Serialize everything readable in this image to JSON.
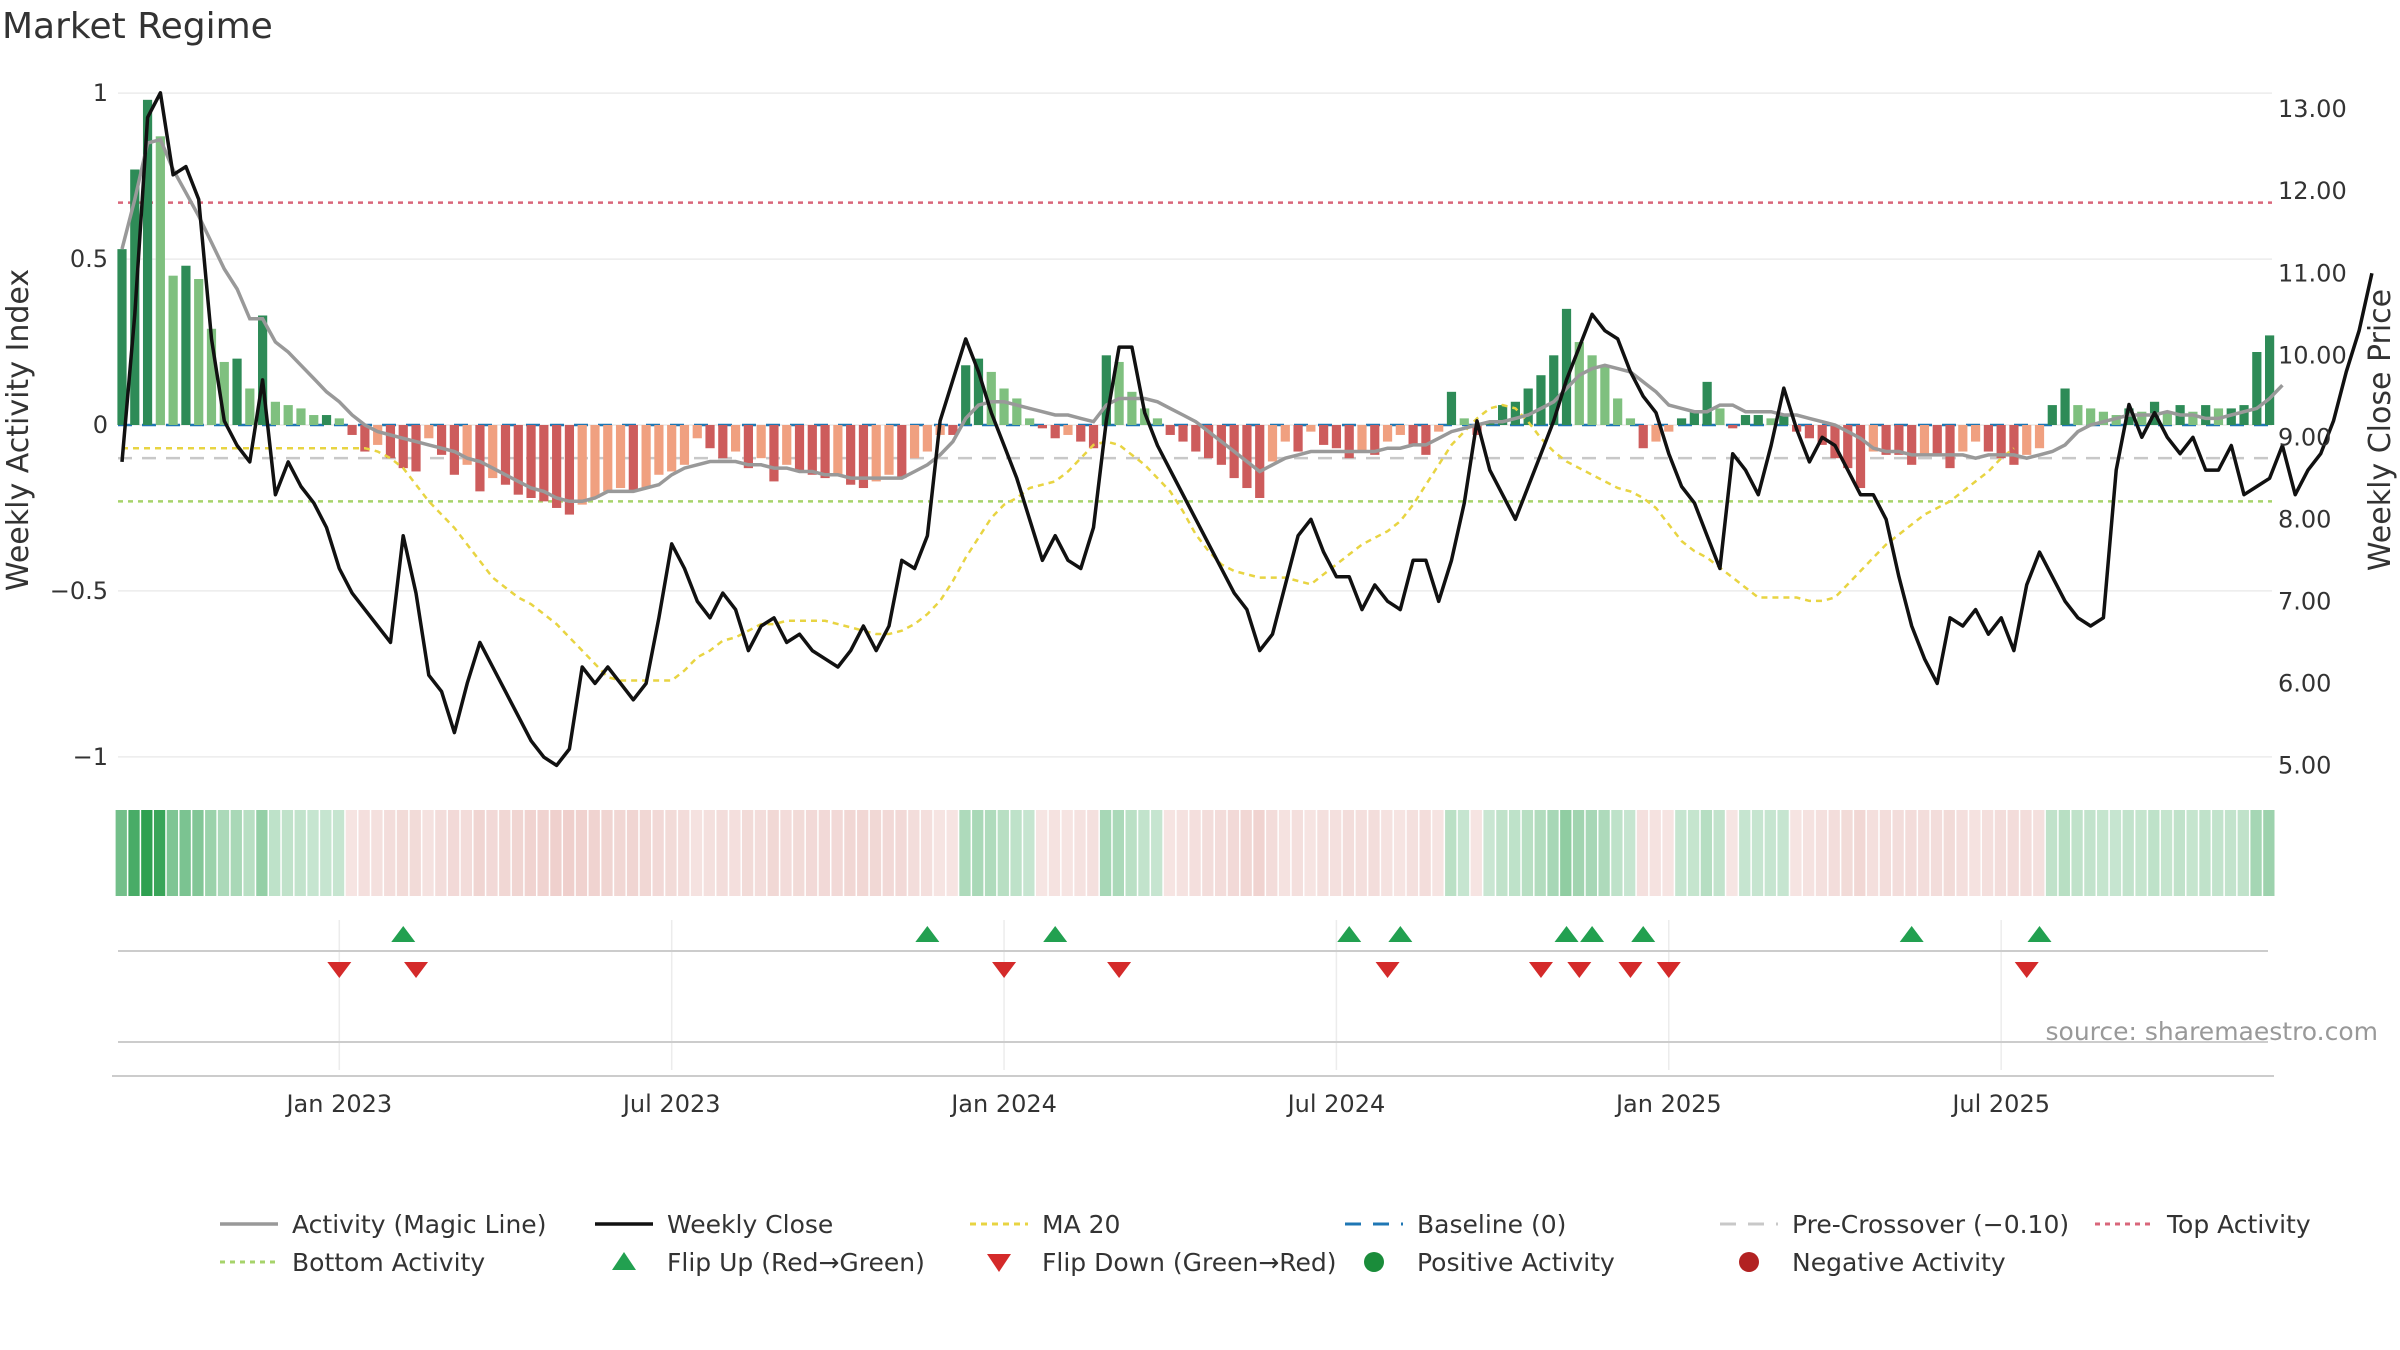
{
  "chart_data": {
    "type": "bar",
    "title": "Market Regime",
    "ylabel_left": "Weekly Activity Index",
    "ylabel_right": "Weekly Close Price",
    "source": "source: sharemaestro.com",
    "ylim_left": [
      -1.1,
      1.1
    ],
    "ylim_right": [
      4.7,
      13.6
    ],
    "yticks_left": [
      {
        "value": 1,
        "label": "1"
      },
      {
        "value": 0.5,
        "label": "0.5"
      },
      {
        "value": 0,
        "label": "0"
      },
      {
        "value": -0.5,
        "label": "−0.5"
      },
      {
        "value": -1,
        "label": "−1"
      }
    ],
    "yticks_right": [
      "13.00",
      "12.00",
      "11.00",
      "10.00",
      "9.00",
      "8.00",
      "7.00",
      "6.00",
      "5.00"
    ],
    "x_ticks": [
      {
        "week": 17,
        "label": "Jan 2023"
      },
      {
        "week": 43,
        "label": "Jul 2023"
      },
      {
        "week": 69,
        "label": "Jan 2024"
      },
      {
        "week": 95,
        "label": "Jul 2024"
      },
      {
        "week": 121,
        "label": "Jan 2025"
      },
      {
        "week": 147,
        "label": "Jul 2025"
      }
    ],
    "reference_lines": {
      "top_activity": 0.67,
      "bottom_activity": -0.23,
      "pre_crossover": -0.1,
      "baseline": 0
    },
    "activity": [
      0.53,
      0.77,
      0.98,
      0.87,
      0.45,
      0.48,
      0.44,
      0.29,
      0.19,
      0.2,
      0.11,
      0.33,
      0.07,
      0.06,
      0.05,
      0.03,
      0.03,
      0.02,
      -0.03,
      -0.08,
      -0.06,
      -0.1,
      -0.13,
      -0.14,
      -0.04,
      -0.09,
      -0.15,
      -0.12,
      -0.2,
      -0.16,
      -0.18,
      -0.21,
      -0.22,
      -0.23,
      -0.25,
      -0.27,
      -0.24,
      -0.22,
      -0.2,
      -0.19,
      -0.2,
      -0.19,
      -0.15,
      -0.14,
      -0.12,
      -0.04,
      -0.07,
      -0.1,
      -0.08,
      -0.13,
      -0.1,
      -0.17,
      -0.12,
      -0.14,
      -0.15,
      -0.16,
      -0.15,
      -0.18,
      -0.19,
      -0.17,
      -0.15,
      -0.16,
      -0.1,
      -0.08,
      -0.03,
      -0.03,
      0.18,
      0.2,
      0.16,
      0.11,
      0.08,
      0.02,
      -0.01,
      -0.04,
      -0.03,
      -0.05,
      -0.07,
      0.21,
      0.19,
      0.1,
      0.05,
      0.02,
      -0.03,
      -0.05,
      -0.08,
      -0.1,
      -0.12,
      -0.16,
      -0.19,
      -0.22,
      -0.11,
      -0.05,
      -0.08,
      -0.02,
      -0.06,
      -0.07,
      -0.1,
      -0.08,
      -0.09,
      -0.05,
      -0.03,
      -0.06,
      -0.09,
      -0.02,
      0.1,
      0.02,
      -0.03,
      0.01,
      0.06,
      0.07,
      0.11,
      0.15,
      0.21,
      0.35,
      0.25,
      0.21,
      0.18,
      0.08,
      0.02,
      -0.07,
      -0.05,
      -0.02,
      0.02,
      0.04,
      0.13,
      0.05,
      -0.01,
      0.03,
      0.03,
      0.02,
      0.03,
      -0.02,
      -0.04,
      -0.06,
      -0.1,
      -0.13,
      -0.19,
      -0.08,
      -0.09,
      -0.09,
      -0.12,
      -0.09,
      -0.09,
      -0.13,
      -0.08,
      -0.05,
      -0.08,
      -0.1,
      -0.12,
      -0.09,
      -0.07,
      0.06,
      0.11,
      0.06,
      0.05,
      0.04,
      0.03,
      0.05,
      0.04,
      0.07,
      0.04,
      0.06,
      0.04,
      0.06,
      0.05,
      0.05,
      0.06,
      0.22,
      0.27
    ],
    "magic_line": [
      0.53,
      0.68,
      0.85,
      0.86,
      0.77,
      0.7,
      0.63,
      0.55,
      0.47,
      0.41,
      0.32,
      0.32,
      0.25,
      0.22,
      0.18,
      0.14,
      0.1,
      0.07,
      0.03,
      0,
      -0.02,
      -0.03,
      -0.04,
      -0.05,
      -0.06,
      -0.07,
      -0.08,
      -0.1,
      -0.11,
      -0.13,
      -0.15,
      -0.17,
      -0.19,
      -0.2,
      -0.22,
      -0.23,
      -0.23,
      -0.22,
      -0.2,
      -0.2,
      -0.2,
      -0.19,
      -0.18,
      -0.15,
      -0.13,
      -0.12,
      -0.11,
      -0.11,
      -0.11,
      -0.12,
      -0.12,
      -0.13,
      -0.13,
      -0.14,
      -0.14,
      -0.15,
      -0.15,
      -0.16,
      -0.16,
      -0.16,
      -0.16,
      -0.16,
      -0.14,
      -0.12,
      -0.09,
      -0.05,
      0.02,
      0.06,
      0.07,
      0.07,
      0.06,
      0.05,
      0.04,
      0.03,
      0.03,
      0.02,
      0.01,
      0.06,
      0.08,
      0.08,
      0.08,
      0.07,
      0.05,
      0.03,
      0.01,
      -0.02,
      -0.05,
      -0.08,
      -0.11,
      -0.14,
      -0.12,
      -0.1,
      -0.09,
      -0.08,
      -0.08,
      -0.08,
      -0.08,
      -0.08,
      -0.08,
      -0.07,
      -0.07,
      -0.06,
      -0.06,
      -0.04,
      -0.02,
      -0.01,
      0,
      0.01,
      0.01,
      0.02,
      0.03,
      0.05,
      0.07,
      0.11,
      0.15,
      0.17,
      0.18,
      0.17,
      0.16,
      0.13,
      0.1,
      0.06,
      0.05,
      0.04,
      0.04,
      0.06,
      0.06,
      0.04,
      0.04,
      0.04,
      0.03,
      0.03,
      0.02,
      0.01,
      0,
      -0.02,
      -0.04,
      -0.07,
      -0.08,
      -0.08,
      -0.09,
      -0.09,
      -0.09,
      -0.09,
      -0.09,
      -0.1,
      -0.09,
      -0.09,
      -0.09,
      -0.1,
      -0.09,
      -0.08,
      -0.06,
      -0.02,
      0,
      0.01,
      0.02,
      0.03,
      0.03,
      0.03,
      0.04,
      0.03,
      0.03,
      0.02,
      0.02,
      0.03,
      0.04,
      0.05,
      0.08,
      0.12
    ],
    "ma20": [
      -0.07,
      -0.07,
      -0.07,
      -0.07,
      -0.07,
      -0.07,
      -0.07,
      -0.07,
      -0.07,
      -0.07,
      -0.07,
      -0.07,
      -0.07,
      -0.07,
      -0.07,
      -0.07,
      -0.07,
      -0.07,
      -0.07,
      -0.07,
      -0.08,
      -0.1,
      -0.13,
      -0.18,
      -0.23,
      -0.27,
      -0.31,
      -0.36,
      -0.41,
      -0.46,
      -0.49,
      -0.52,
      -0.54,
      -0.57,
      -0.6,
      -0.64,
      -0.68,
      -0.72,
      -0.76,
      -0.77,
      -0.77,
      -0.77,
      -0.77,
      -0.77,
      -0.74,
      -0.7,
      -0.68,
      -0.65,
      -0.64,
      -0.62,
      -0.6,
      -0.6,
      -0.59,
      -0.59,
      -0.59,
      -0.59,
      -0.6,
      -0.61,
      -0.62,
      -0.63,
      -0.63,
      -0.62,
      -0.6,
      -0.57,
      -0.53,
      -0.47,
      -0.4,
      -0.34,
      -0.28,
      -0.24,
      -0.22,
      -0.19,
      -0.18,
      -0.17,
      -0.14,
      -0.1,
      -0.06,
      -0.05,
      -0.06,
      -0.09,
      -0.12,
      -0.16,
      -0.2,
      -0.26,
      -0.33,
      -0.38,
      -0.42,
      -0.44,
      -0.45,
      -0.46,
      -0.46,
      -0.46,
      -0.47,
      -0.48,
      -0.45,
      -0.42,
      -0.39,
      -0.36,
      -0.34,
      -0.32,
      -0.29,
      -0.24,
      -0.18,
      -0.12,
      -0.06,
      -0.02,
      0.02,
      0.05,
      0.06,
      0.05,
      0.01,
      -0.04,
      -0.08,
      -0.11,
      -0.13,
      -0.15,
      -0.17,
      -0.19,
      -0.2,
      -0.22,
      -0.25,
      -0.3,
      -0.35,
      -0.38,
      -0.4,
      -0.43,
      -0.46,
      -0.49,
      -0.52,
      -0.52,
      -0.52,
      -0.52,
      -0.53,
      -0.53,
      -0.52,
      -0.48,
      -0.44,
      -0.4,
      -0.36,
      -0.33,
      -0.3,
      -0.27,
      -0.25,
      -0.23,
      -0.2,
      -0.17,
      -0.14,
      -0.1,
      -0.07
    ],
    "price": [
      8.7,
      10.5,
      12.9,
      13.2,
      12.2,
      12.3,
      11.9,
      10.2,
      9.2,
      8.9,
      8.7,
      9.7,
      8.3,
      8.7,
      8.4,
      8.2,
      7.9,
      7.4,
      7.1,
      6.9,
      6.7,
      6.5,
      7.8,
      7.1,
      6.1,
      5.9,
      5.4,
      6.0,
      6.5,
      6.2,
      5.9,
      5.6,
      5.3,
      5.1,
      5.0,
      5.2,
      6.2,
      6.0,
      6.2,
      6.0,
      5.8,
      6.0,
      6.8,
      7.7,
      7.4,
      7.0,
      6.8,
      7.1,
      6.9,
      6.4,
      6.7,
      6.8,
      6.5,
      6.6,
      6.4,
      6.3,
      6.2,
      6.4,
      6.7,
      6.4,
      6.7,
      7.5,
      7.4,
      7.8,
      9.2,
      9.7,
      10.2,
      9.8,
      9.3,
      8.9,
      8.5,
      8.0,
      7.5,
      7.8,
      7.5,
      7.4,
      7.9,
      9.2,
      10.1,
      10.1,
      9.3,
      8.9,
      8.6,
      8.3,
      8.0,
      7.7,
      7.4,
      7.1,
      6.9,
      6.4,
      6.6,
      7.2,
      7.8,
      8.0,
      7.6,
      7.3,
      7.3,
      6.9,
      7.2,
      7.0,
      6.9,
      7.5,
      7.5,
      7.0,
      7.5,
      8.2,
      9.2,
      8.6,
      8.3,
      8.0,
      8.4,
      8.8,
      9.2,
      9.7,
      10.1,
      10.5,
      10.3,
      10.2,
      9.8,
      9.5,
      9.3,
      8.8,
      8.4,
      8.2,
      7.8,
      7.4,
      8.8,
      8.6,
      8.3,
      8.9,
      9.6,
      9.1,
      8.7,
      9.0,
      8.9,
      8.6,
      8.3,
      8.3,
      8.0,
      7.3,
      6.7,
      6.3,
      6.0,
      6.8,
      6.7,
      6.9,
      6.6,
      6.8,
      6.4,
      7.2,
      7.6,
      7.3,
      7.0,
      6.8,
      6.7,
      6.8,
      8.6,
      9.4,
      9.0,
      9.3,
      9.0,
      8.8,
      9.0,
      8.6,
      8.6,
      8.9,
      8.3,
      8.4,
      8.5,
      8.9,
      8.3,
      8.6,
      8.8,
      9.2,
      9.8,
      10.3,
      11.0
    ],
    "flip_up_weeks": [
      22,
      63,
      73,
      96,
      100,
      113,
      115,
      119,
      140,
      150
    ],
    "flip_down_weeks": [
      17,
      23,
      69,
      78,
      99,
      111,
      114,
      118,
      121,
      149
    ],
    "strip_label": "",
    "legend": [
      {
        "key": "magic",
        "label": "Activity (Magic Line)"
      },
      {
        "key": "close",
        "label": "Weekly Close"
      },
      {
        "key": "ma20",
        "label": "MA 20"
      },
      {
        "key": "baseline",
        "label": "Baseline (0)"
      },
      {
        "key": "precross",
        "label": "Pre-Crossover (−0.10)"
      },
      {
        "key": "top",
        "label": "Top Activity"
      },
      {
        "key": "bottom",
        "label": "Bottom Activity"
      },
      {
        "key": "flipup",
        "label": "Flip Up (Red→Green)"
      },
      {
        "key": "flipdown",
        "label": "Flip Down (Green→Red)"
      },
      {
        "key": "positive",
        "label": "Positive Activity"
      },
      {
        "key": "negative",
        "label": "Negative Activity"
      }
    ],
    "colors": {
      "pos_strong": "#2e8b57",
      "pos_light": "#7fc07f",
      "neg_strong": "#cd5c5c",
      "neg_light": "#f0a080",
      "magic": "#999999",
      "close": "#111111",
      "ma20": "#e8d442",
      "baseline": "#1f77b4",
      "precross": "#c8c8c8",
      "top": "#d9667a",
      "bottom": "#a6d36a",
      "flipup": "#22a050",
      "flipdown": "#d42a2a",
      "positive": "#1a8c3a",
      "negative": "#b22222"
    }
  }
}
